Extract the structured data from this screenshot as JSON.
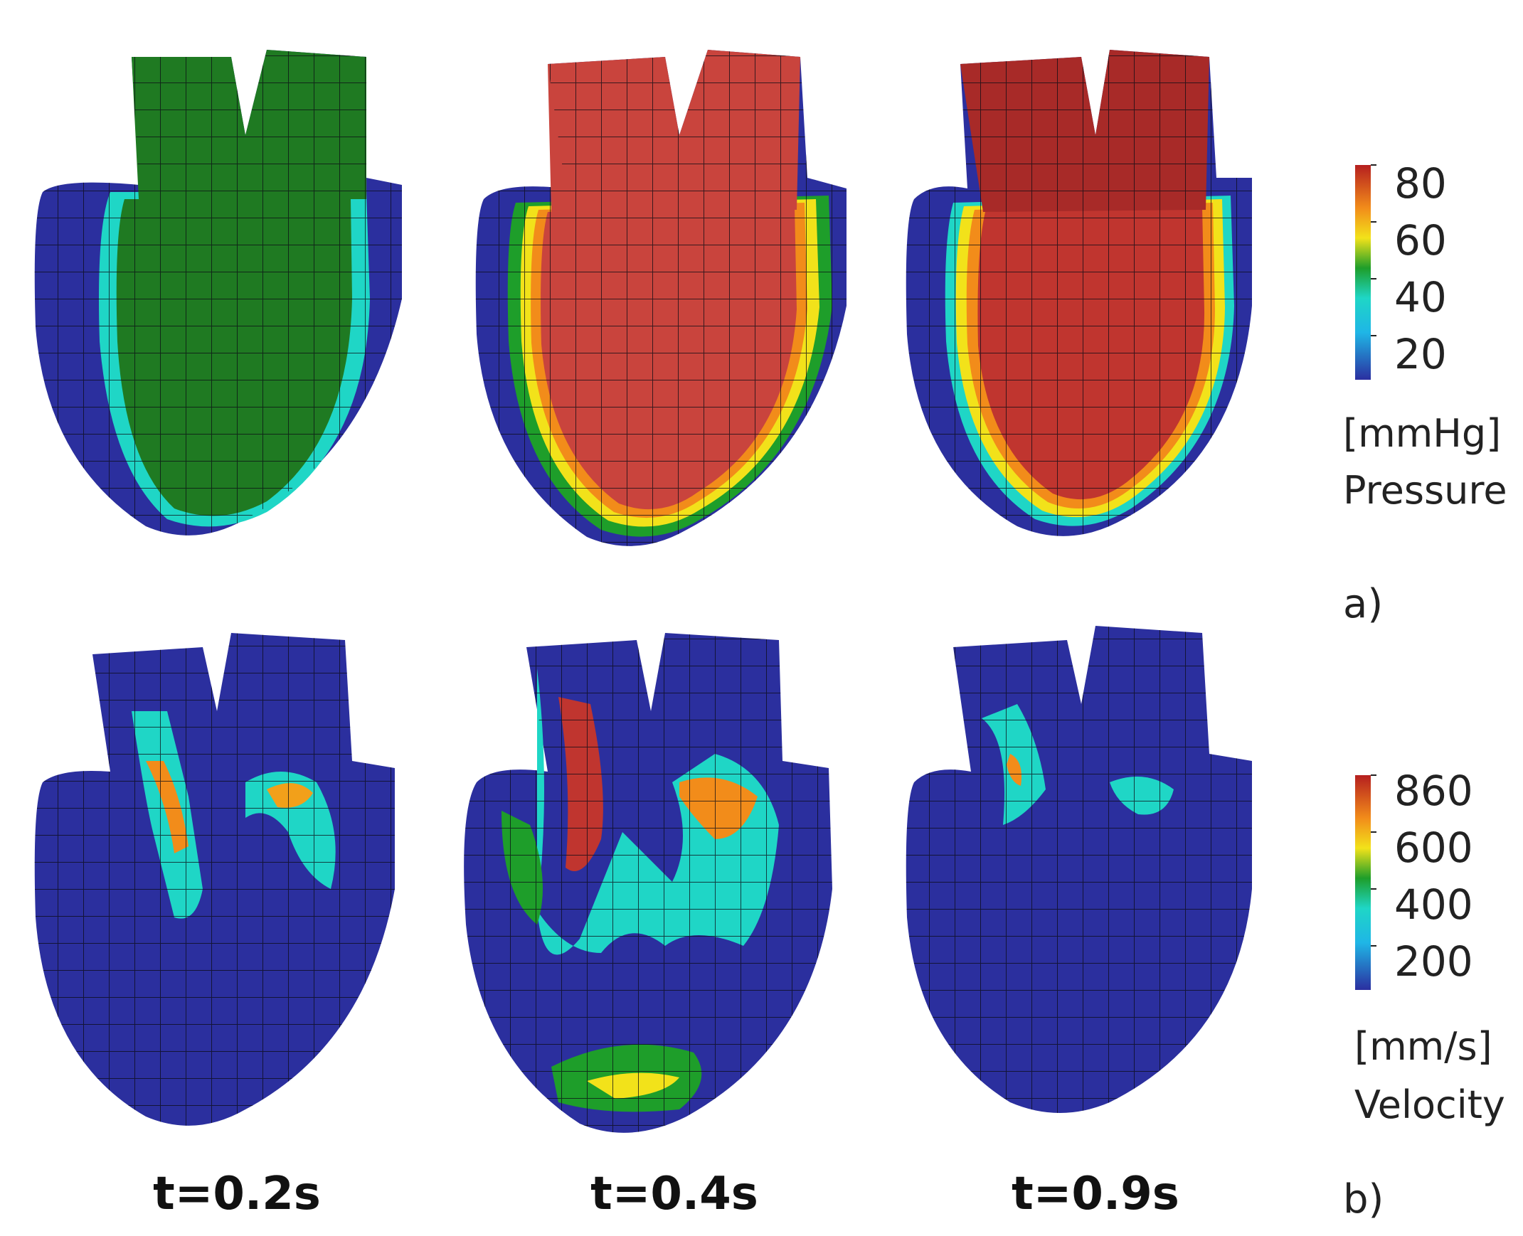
{
  "figure": {
    "colors": {
      "jet": [
        "#2b2fa0",
        "#1fd6d6",
        "#1e9e2a",
        "#f2e21a",
        "#f28c1a",
        "#b51f1f"
      ],
      "mesh_line": "#0a0a14",
      "blue_wall": "#2b2f9e",
      "pressure_green": "#1f7a22",
      "pressure_red": "#c9443d"
    },
    "times": [
      "t=0.2s",
      "t=0.4s",
      "t=0.9s"
    ],
    "panels": {
      "a": "a)",
      "b": "b)"
    },
    "pressure_colorbar": {
      "ticks": [
        "80",
        "60",
        "40",
        "20"
      ],
      "unit": "[mmHg]",
      "quantity": "Pressure"
    },
    "velocity_colorbar": {
      "ticks": [
        "860",
        "600",
        "400",
        "200"
      ],
      "unit": "[mm/s]",
      "quantity": "Velocity"
    },
    "hearts": [
      {
        "row": "pressure",
        "time": "t=0.2s",
        "state": "green-interior"
      },
      {
        "row": "pressure",
        "time": "t=0.4s",
        "state": "red-interior"
      },
      {
        "row": "pressure",
        "time": "t=0.9s",
        "state": "red-interior"
      },
      {
        "row": "velocity",
        "time": "t=0.2s",
        "state": "low-flow"
      },
      {
        "row": "velocity",
        "time": "t=0.4s",
        "state": "high-flow"
      },
      {
        "row": "velocity",
        "time": "t=0.9s",
        "state": "low-flow"
      }
    ]
  }
}
